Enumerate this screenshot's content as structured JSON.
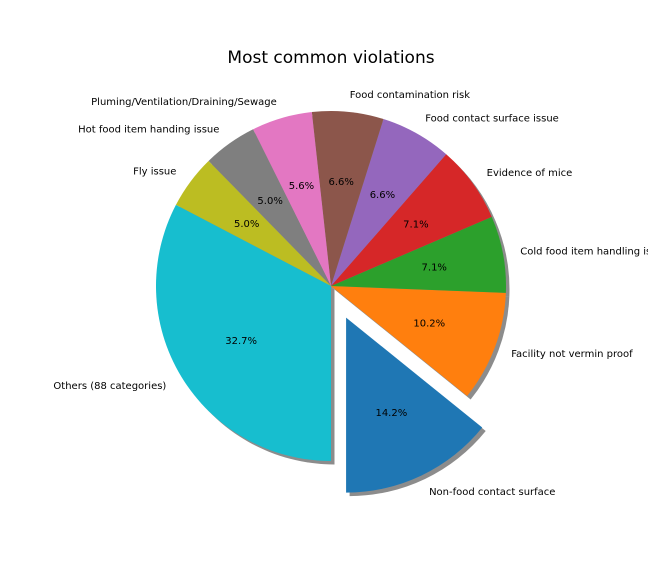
{
  "chart_data": {
    "type": "pie",
    "title": "Most common violations",
    "labels": [
      "Non-food contact surface",
      "Facility not vermin proof",
      "Cold food item handling issue",
      "Evidence of mice",
      "Food contact surface issue",
      "Food contamination risk",
      "Pluming/Ventilation/Draining/Sewage",
      "Hot food item handing issue",
      "Fly issue",
      "Others (88 categories)"
    ],
    "values": [
      14.2,
      10.2,
      7.1,
      7.1,
      6.6,
      6.6,
      5.6,
      5.0,
      5.0,
      32.7
    ],
    "value_labels": [
      "14.2%",
      "10.2%",
      "7.1%",
      "7.1%",
      "6.6%",
      "6.6%",
      "5.6%",
      "5.0%",
      "5.0%",
      "32.7%"
    ],
    "colors": [
      "#1f77b4",
      "#ff7f0e",
      "#2ca02c",
      "#d62728",
      "#9467bd",
      "#8c564b",
      "#e377c2",
      "#7f7f7f",
      "#bcbd22",
      "#17becf"
    ],
    "explode": [
      0.2,
      0,
      0,
      0,
      0,
      0,
      0,
      0,
      0,
      0
    ],
    "start_angle_deg": -90,
    "shadow": true,
    "legend": "none"
  }
}
